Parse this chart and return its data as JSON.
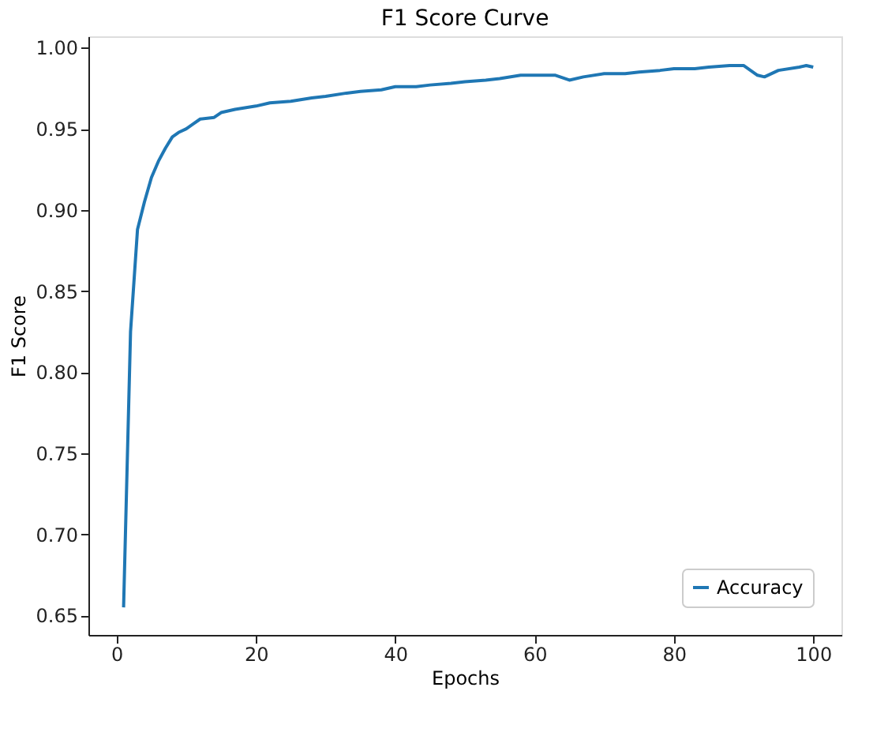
{
  "chart_data": {
    "type": "line",
    "title": "F1 Score Curve",
    "xlabel": "Epochs",
    "ylabel": "F1 Score",
    "x": [
      1,
      2,
      3,
      4,
      5,
      6,
      7,
      8,
      9,
      10,
      11,
      12,
      14,
      15,
      17,
      20,
      22,
      25,
      28,
      30,
      33,
      35,
      38,
      40,
      43,
      45,
      48,
      50,
      53,
      55,
      58,
      60,
      63,
      65,
      67,
      70,
      73,
      75,
      78,
      80,
      83,
      85,
      88,
      90,
      92,
      93,
      95,
      98,
      99,
      100
    ],
    "series": [
      {
        "name": "Accuracy",
        "color": "#1f77b4",
        "values": [
          0.655,
          0.825,
          0.888,
          0.905,
          0.92,
          0.93,
          0.938,
          0.945,
          0.948,
          0.95,
          0.953,
          0.956,
          0.957,
          0.96,
          0.962,
          0.964,
          0.966,
          0.967,
          0.969,
          0.97,
          0.972,
          0.973,
          0.974,
          0.976,
          0.976,
          0.977,
          0.978,
          0.979,
          0.98,
          0.981,
          0.983,
          0.983,
          0.983,
          0.98,
          0.982,
          0.984,
          0.984,
          0.985,
          0.986,
          0.987,
          0.987,
          0.988,
          0.989,
          0.989,
          0.983,
          0.982,
          0.986,
          0.988,
          0.989,
          0.988
        ]
      }
    ],
    "xlim": [
      -4.05,
      104.05
    ],
    "ylim": [
      0.638,
      1.007
    ],
    "xticks": [
      0,
      20,
      40,
      60,
      80,
      100
    ],
    "yticks": [
      0.65,
      {
        "value": 0.7,
        "label": "0.70"
      },
      0.75,
      {
        "value": 0.8,
        "label": "0.80"
      },
      0.85,
      {
        "value": 0.9,
        "label": "0.90"
      },
      0.95,
      {
        "value": 1.0,
        "label": "1.00"
      }
    ],
    "grid": false,
    "legend": "bottom right",
    "marker": "none",
    "line_style": "solid"
  }
}
